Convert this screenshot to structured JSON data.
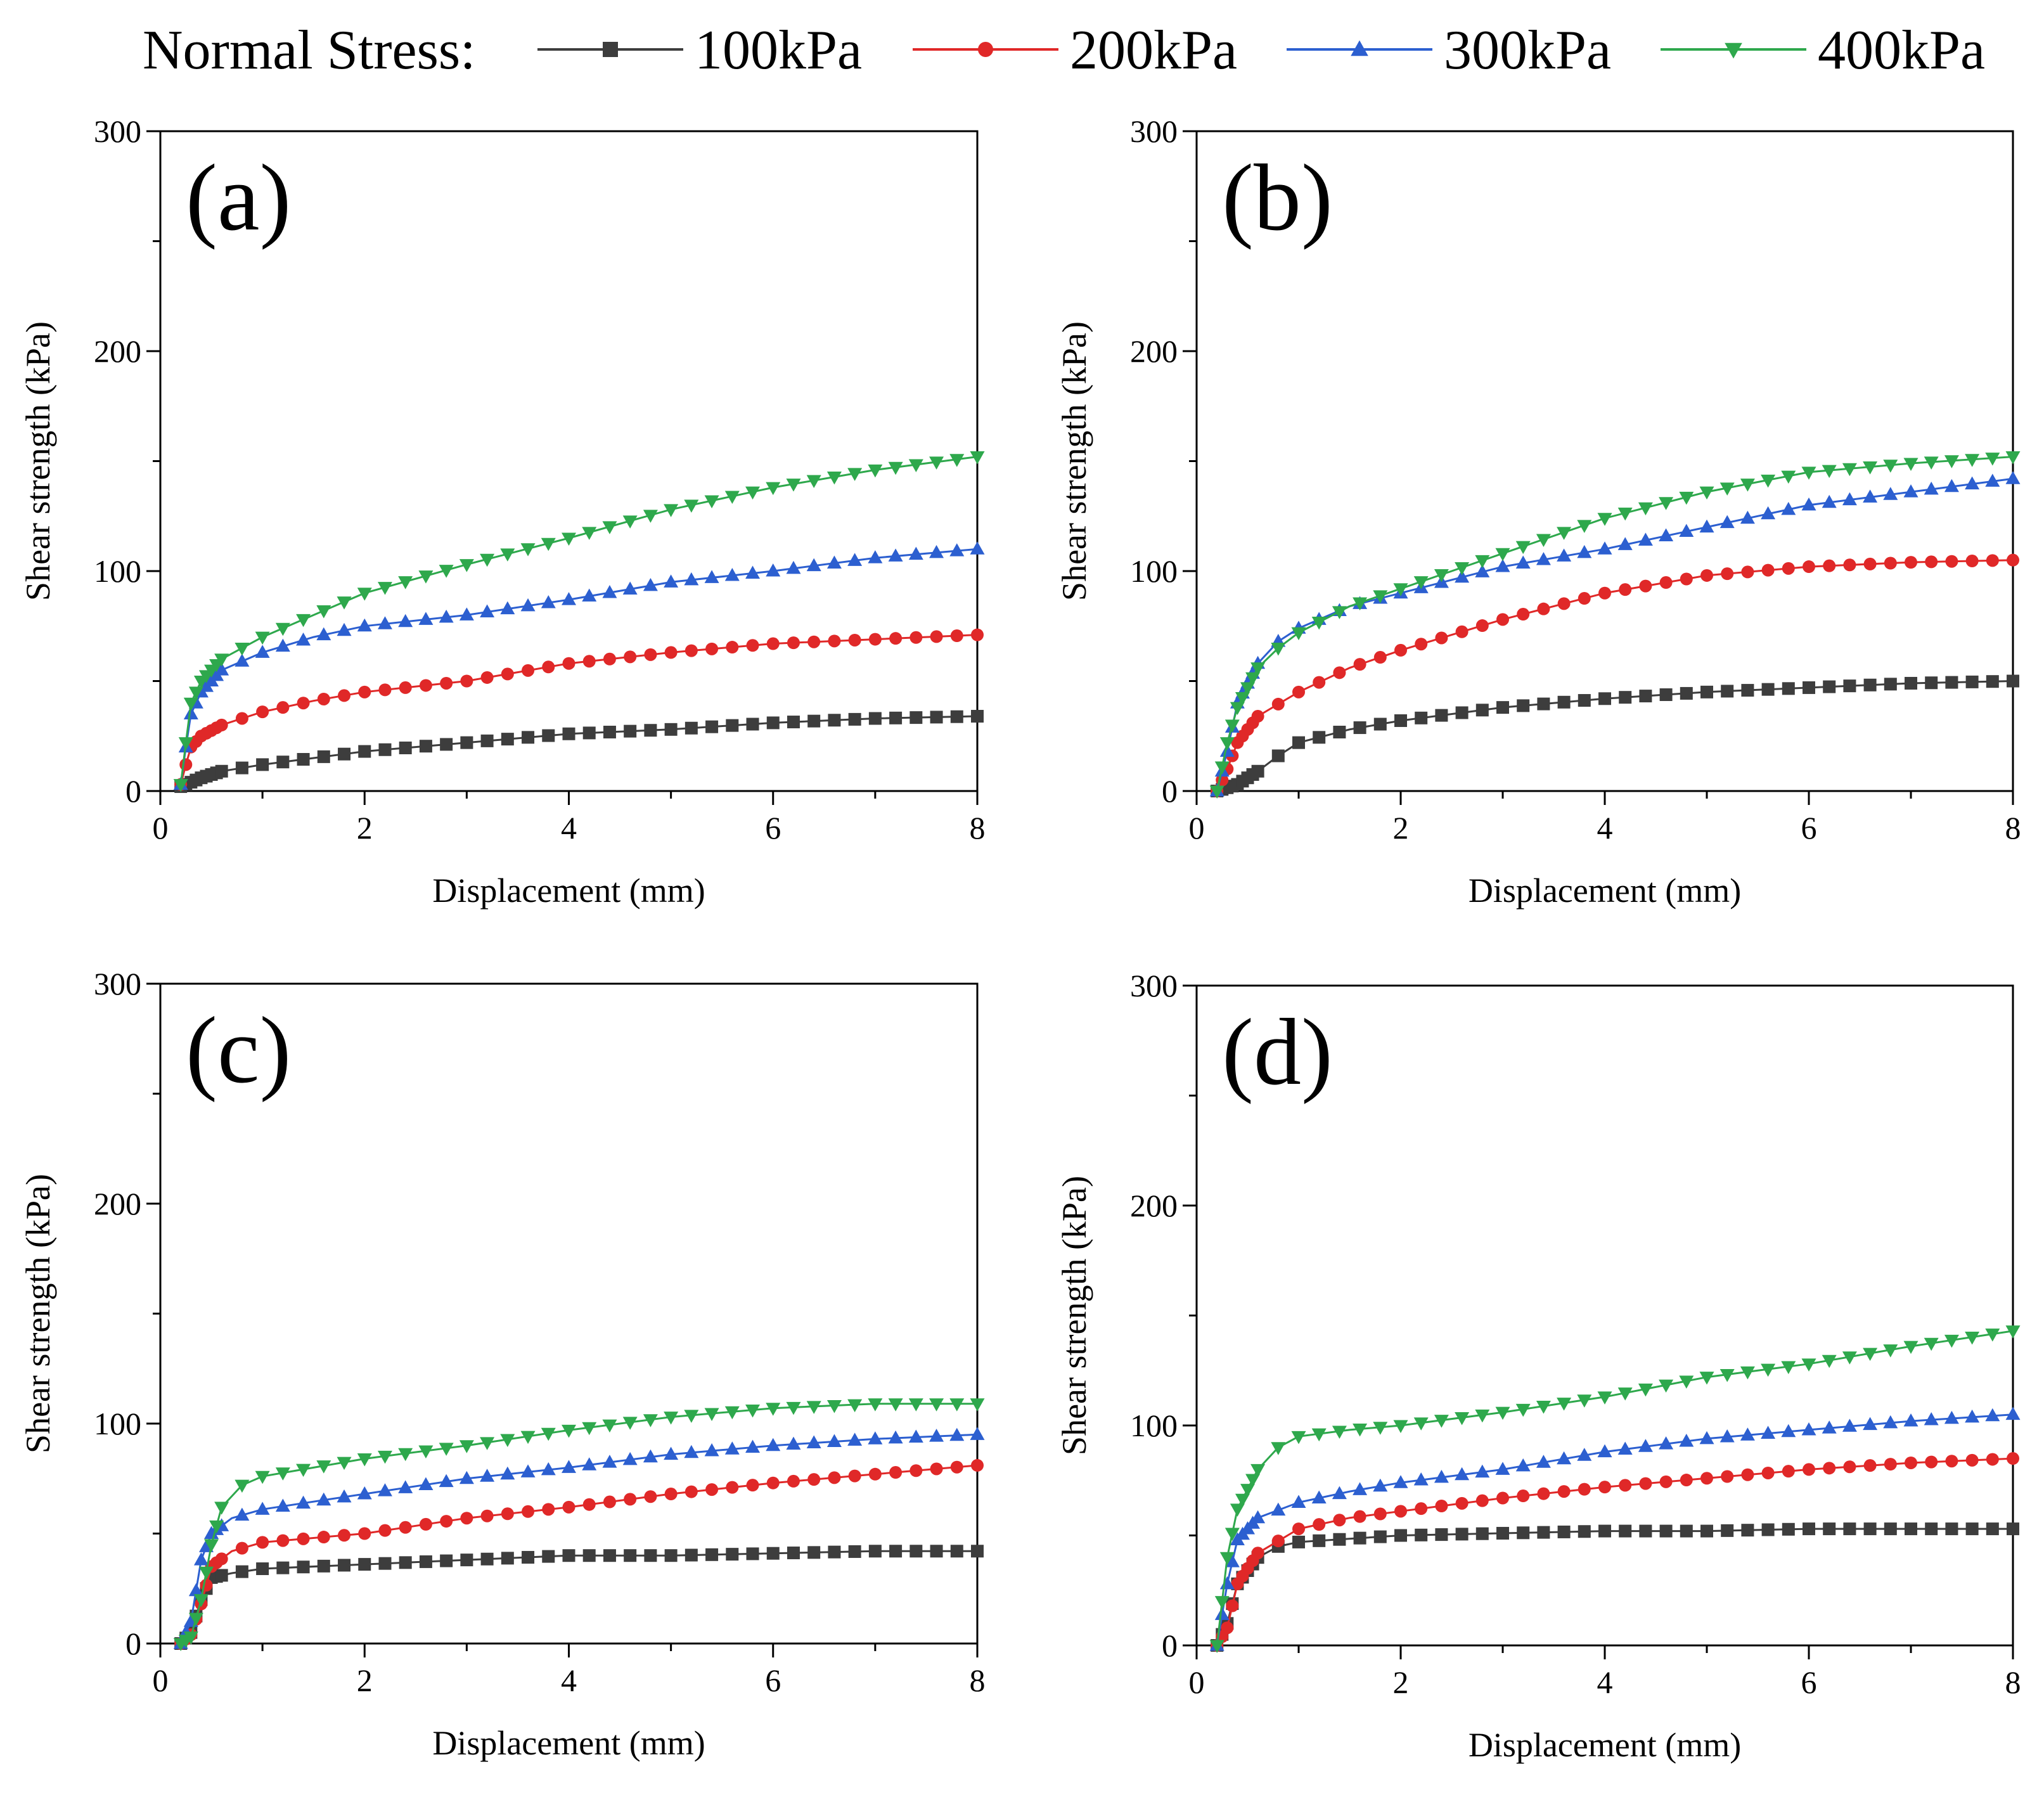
{
  "legend": {
    "title": "Normal Stress:",
    "items": [
      {
        "label": "100kPa",
        "color": "#3d3d3d",
        "marker": "square"
      },
      {
        "label": "200kPa",
        "color": "#e02828",
        "marker": "circle"
      },
      {
        "label": "300kPa",
        "color": "#2c5fd0",
        "marker": "triangle-up"
      },
      {
        "label": "400kPa",
        "color": "#2ea84c",
        "marker": "triangle-down"
      }
    ]
  },
  "chart_data": [
    {
      "type": "line",
      "panel": "(a)",
      "xlabel": "Displacement (mm)",
      "ylabel": "Shear strength (kPa)",
      "xlim": [
        0,
        8
      ],
      "ylim": [
        0,
        300
      ],
      "xticks": [
        0,
        2,
        4,
        6,
        8
      ],
      "yticks": [
        0,
        100,
        200,
        300
      ],
      "series": [
        {
          "name": "100kPa",
          "points": [
            [
              0.2,
              2
            ],
            [
              0.3,
              4
            ],
            [
              0.4,
              6
            ],
            [
              0.6,
              9
            ],
            [
              1,
              12
            ],
            [
              1.5,
              15
            ],
            [
              2,
              18
            ],
            [
              3,
              22
            ],
            [
              4,
              26
            ],
            [
              5,
              28
            ],
            [
              6,
              31
            ],
            [
              7,
              33
            ],
            [
              8,
              34
            ]
          ]
        },
        {
          "name": "200kPa",
          "points": [
            [
              0.2,
              3
            ],
            [
              0.25,
              12
            ],
            [
              0.3,
              20
            ],
            [
              0.4,
              25
            ],
            [
              0.6,
              30
            ],
            [
              1,
              36
            ],
            [
              1.5,
              41
            ],
            [
              2,
              45
            ],
            [
              3,
              50
            ],
            [
              4,
              58
            ],
            [
              5,
              63
            ],
            [
              6,
              67
            ],
            [
              7,
              69
            ],
            [
              8,
              71
            ]
          ]
        },
        {
          "name": "300kPa",
          "points": [
            [
              0.2,
              3
            ],
            [
              0.25,
              20
            ],
            [
              0.3,
              35
            ],
            [
              0.4,
              45
            ],
            [
              0.6,
              55
            ],
            [
              1,
              63
            ],
            [
              1.5,
              70
            ],
            [
              2,
              75
            ],
            [
              3,
              80
            ],
            [
              4,
              87
            ],
            [
              5,
              95
            ],
            [
              6,
              100
            ],
            [
              7,
              106
            ],
            [
              8,
              110
            ]
          ]
        },
        {
          "name": "400kPa",
          "points": [
            [
              0.2,
              3
            ],
            [
              0.25,
              22
            ],
            [
              0.3,
              40
            ],
            [
              0.4,
              50
            ],
            [
              0.6,
              60
            ],
            [
              1,
              70
            ],
            [
              1.5,
              80
            ],
            [
              2,
              90
            ],
            [
              3,
              103
            ],
            [
              4,
              115
            ],
            [
              5,
              128
            ],
            [
              6,
              138
            ],
            [
              7,
              146
            ],
            [
              8,
              152
            ]
          ]
        }
      ]
    },
    {
      "type": "line",
      "panel": "(b)",
      "xlabel": "Displacement (mm)",
      "ylabel": "Shear strength (kPa)",
      "xlim": [
        0,
        8
      ],
      "ylim": [
        0,
        300
      ],
      "xticks": [
        0,
        2,
        4,
        6,
        8
      ],
      "yticks": [
        0,
        100,
        200,
        300
      ],
      "series": [
        {
          "name": "100kPa",
          "points": [
            [
              0.2,
              0
            ],
            [
              0.4,
              3
            ],
            [
              0.6,
              9
            ],
            [
              0.8,
              16
            ],
            [
              1,
              22
            ],
            [
              1.5,
              28
            ],
            [
              2,
              32
            ],
            [
              3,
              38
            ],
            [
              4,
              42
            ],
            [
              5,
              45
            ],
            [
              6,
              47
            ],
            [
              7,
              49
            ],
            [
              8,
              50
            ]
          ]
        },
        {
          "name": "200kPa",
          "points": [
            [
              0.2,
              0
            ],
            [
              0.3,
              10
            ],
            [
              0.4,
              22
            ],
            [
              0.6,
              34
            ],
            [
              1,
              45
            ],
            [
              1.5,
              56
            ],
            [
              2,
              64
            ],
            [
              3,
              78
            ],
            [
              4,
              90
            ],
            [
              5,
              98
            ],
            [
              6,
              102
            ],
            [
              7,
              104
            ],
            [
              8,
              105
            ]
          ]
        },
        {
          "name": "300kPa",
          "points": [
            [
              0.2,
              0
            ],
            [
              0.3,
              18
            ],
            [
              0.4,
              40
            ],
            [
              0.6,
              58
            ],
            [
              0.8,
              68
            ],
            [
              1,
              74
            ],
            [
              1.5,
              84
            ],
            [
              2,
              90
            ],
            [
              3,
              102
            ],
            [
              4,
              110
            ],
            [
              5,
              120
            ],
            [
              6,
              130
            ],
            [
              7,
              136
            ],
            [
              8,
              142
            ]
          ]
        },
        {
          "name": "400kPa",
          "points": [
            [
              0.2,
              0
            ],
            [
              0.3,
              22
            ],
            [
              0.4,
              38
            ],
            [
              0.6,
              56
            ],
            [
              0.8,
              65
            ],
            [
              1,
              72
            ],
            [
              1.5,
              84
            ],
            [
              2,
              92
            ],
            [
              3,
              108
            ],
            [
              4,
              124
            ],
            [
              5,
              136
            ],
            [
              6,
              145
            ],
            [
              7,
              149
            ],
            [
              8,
              152
            ]
          ]
        }
      ]
    },
    {
      "type": "line",
      "panel": "(c)",
      "xlabel": "Displacement (mm)",
      "ylabel": "Shear strength (kPa)",
      "xlim": [
        0,
        8
      ],
      "ylim": [
        0,
        300
      ],
      "xticks": [
        0,
        2,
        4,
        6,
        8
      ],
      "yticks": [
        0,
        100,
        200,
        300
      ],
      "series": [
        {
          "name": "100kPa",
          "points": [
            [
              0.2,
              0
            ],
            [
              0.3,
              5
            ],
            [
              0.4,
              20
            ],
            [
              0.5,
              30
            ],
            [
              0.7,
              32
            ],
            [
              1,
              34
            ],
            [
              2,
              36
            ],
            [
              3,
              38
            ],
            [
              4,
              40
            ],
            [
              5,
              40
            ],
            [
              6,
              41
            ],
            [
              7,
              42
            ],
            [
              8,
              42
            ]
          ]
        },
        {
          "name": "200kPa",
          "points": [
            [
              0.2,
              0
            ],
            [
              0.3,
              4
            ],
            [
              0.4,
              18
            ],
            [
              0.5,
              35
            ],
            [
              0.7,
              42
            ],
            [
              1,
              46
            ],
            [
              2,
              50
            ],
            [
              3,
              57
            ],
            [
              4,
              62
            ],
            [
              5,
              68
            ],
            [
              6,
              73
            ],
            [
              7,
              77
            ],
            [
              8,
              81
            ]
          ]
        },
        {
          "name": "300kPa",
          "points": [
            [
              0.2,
              0
            ],
            [
              0.3,
              10
            ],
            [
              0.4,
              38
            ],
            [
              0.5,
              50
            ],
            [
              0.7,
              57
            ],
            [
              1,
              61
            ],
            [
              2,
              68
            ],
            [
              3,
              75
            ],
            [
              4,
              80
            ],
            [
              5,
              86
            ],
            [
              6,
              90
            ],
            [
              7,
              93
            ],
            [
              8,
              95
            ]
          ]
        },
        {
          "name": "400kPa",
          "points": [
            [
              0.2,
              0
            ],
            [
              0.3,
              3
            ],
            [
              0.4,
              20
            ],
            [
              0.5,
              45
            ],
            [
              0.6,
              62
            ],
            [
              0.8,
              72
            ],
            [
              1,
              76
            ],
            [
              2,
              84
            ],
            [
              3,
              90
            ],
            [
              4,
              97
            ],
            [
              5,
              103
            ],
            [
              6,
              107
            ],
            [
              7,
              109
            ],
            [
              8,
              109
            ]
          ]
        }
      ]
    },
    {
      "type": "line",
      "panel": "(d)",
      "xlabel": "Displacement (mm)",
      "ylabel": "Shear strength (kPa)",
      "xlim": [
        0,
        8
      ],
      "ylim": [
        0,
        300
      ],
      "xticks": [
        0,
        2,
        4,
        6,
        8
      ],
      "yticks": [
        0,
        100,
        200,
        300
      ],
      "series": [
        {
          "name": "100kPa",
          "points": [
            [
              0.2,
              0
            ],
            [
              0.3,
              10
            ],
            [
              0.4,
              28
            ],
            [
              0.6,
              40
            ],
            [
              0.8,
              45
            ],
            [
              1,
              47
            ],
            [
              2,
              50
            ],
            [
              3,
              51
            ],
            [
              4,
              52
            ],
            [
              5,
              52
            ],
            [
              6,
              53
            ],
            [
              7,
              53
            ],
            [
              8,
              53
            ]
          ]
        },
        {
          "name": "200kPa",
          "points": [
            [
              0.2,
              0
            ],
            [
              0.3,
              8
            ],
            [
              0.4,
              28
            ],
            [
              0.6,
              42
            ],
            [
              1,
              53
            ],
            [
              1.5,
              58
            ],
            [
              2,
              61
            ],
            [
              3,
              67
            ],
            [
              4,
              72
            ],
            [
              5,
              76
            ],
            [
              6,
              80
            ],
            [
              7,
              83
            ],
            [
              8,
              85
            ]
          ]
        },
        {
          "name": "300kPa",
          "points": [
            [
              0.2,
              0
            ],
            [
              0.3,
              28
            ],
            [
              0.4,
              48
            ],
            [
              0.6,
              58
            ],
            [
              1,
              65
            ],
            [
              1.5,
              70
            ],
            [
              2,
              74
            ],
            [
              3,
              80
            ],
            [
              4,
              88
            ],
            [
              5,
              94
            ],
            [
              6,
              98
            ],
            [
              7,
              102
            ],
            [
              8,
              105
            ]
          ]
        },
        {
          "name": "400kPa",
          "points": [
            [
              0.2,
              0
            ],
            [
              0.3,
              40
            ],
            [
              0.4,
              62
            ],
            [
              0.6,
              80
            ],
            [
              0.8,
              90
            ],
            [
              1,
              95
            ],
            [
              1.5,
              98
            ],
            [
              2,
              100
            ],
            [
              3,
              106
            ],
            [
              4,
              113
            ],
            [
              5,
              122
            ],
            [
              6,
              128
            ],
            [
              7,
              136
            ],
            [
              8,
              143
            ]
          ]
        }
      ]
    }
  ]
}
